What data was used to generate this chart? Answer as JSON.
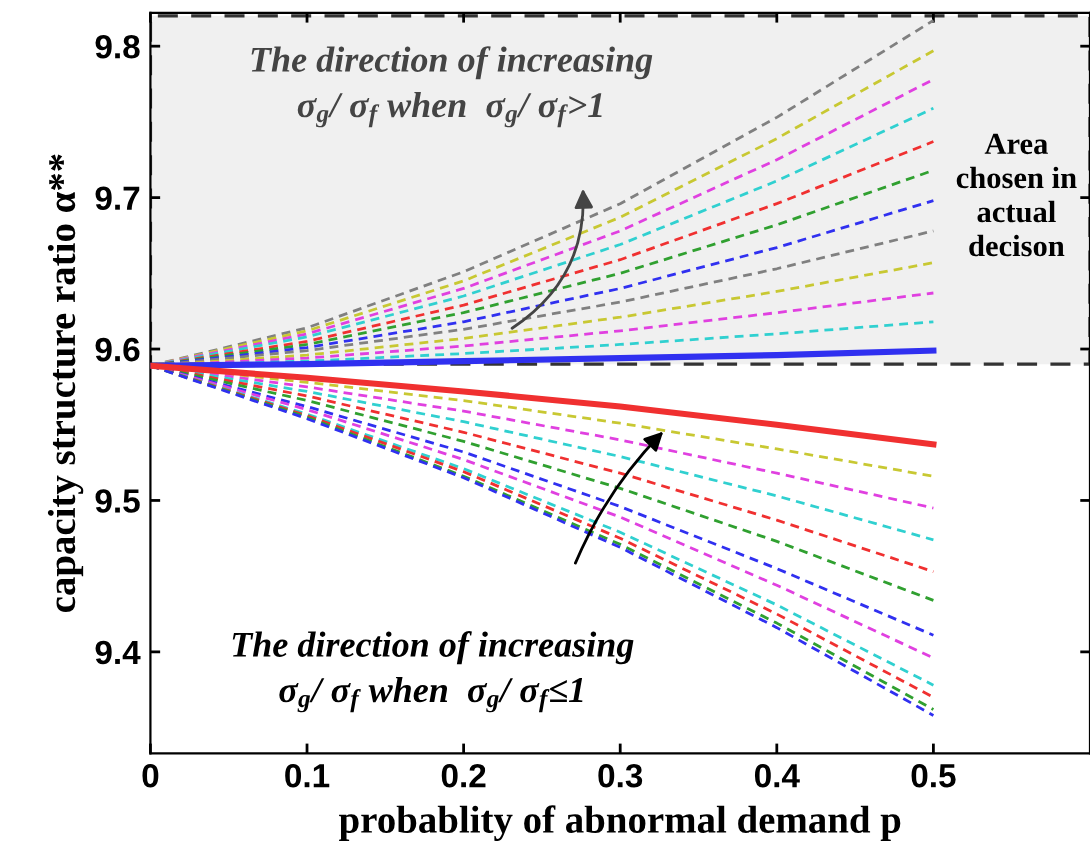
{
  "chart_data": {
    "type": "line",
    "xlabel": "probablity of abnormal demand p",
    "ylabel": "capacity structure ratio α**",
    "x": [
      0,
      0.1,
      0.2,
      0.3,
      0.4,
      0.5
    ],
    "xlim": [
      0,
      0.6
    ],
    "ylim": [
      9.333,
      9.822
    ],
    "xticks": [
      0,
      0.1,
      0.2,
      0.3,
      0.4,
      0.5
    ],
    "yticks": [
      9.4,
      9.5,
      9.6,
      9.7,
      9.8
    ],
    "grid": false,
    "legend": false,
    "marker": "none",
    "series": [
      {
        "color": "#808080",
        "line_style": "dashed",
        "values": [
          9.589,
          9.614,
          9.651,
          9.696,
          9.753,
          9.817
        ]
      },
      {
        "color": "#c8c832",
        "line_style": "dashed",
        "values": [
          9.589,
          9.612,
          9.645,
          9.687,
          9.739,
          9.797
        ]
      },
      {
        "color": "#e040e0",
        "line_style": "dashed",
        "values": [
          9.589,
          9.61,
          9.64,
          9.678,
          9.725,
          9.778
        ]
      },
      {
        "color": "#30d0d0",
        "line_style": "dashed",
        "values": [
          9.589,
          9.608,
          9.635,
          9.669,
          9.711,
          9.759
        ]
      },
      {
        "color": "#f03030",
        "line_style": "dashed",
        "values": [
          9.589,
          9.605,
          9.629,
          9.659,
          9.696,
          9.737
        ]
      },
      {
        "color": "#30a030",
        "line_style": "dashed",
        "values": [
          9.589,
          9.603,
          9.624,
          9.65,
          9.682,
          9.718
        ]
      },
      {
        "color": "#3030f0",
        "line_style": "dashed",
        "values": [
          9.589,
          9.601,
          9.618,
          9.64,
          9.667,
          9.698
        ]
      },
      {
        "color": "#808080",
        "line_style": "dashed",
        "values": [
          9.589,
          9.599,
          9.613,
          9.631,
          9.653,
          9.678
        ]
      },
      {
        "color": "#c8c832",
        "line_style": "dashed",
        "values": [
          9.589,
          9.596,
          9.607,
          9.621,
          9.638,
          9.657
        ]
      },
      {
        "color": "#e040e0",
        "line_style": "dashed",
        "values": [
          9.589,
          9.594,
          9.602,
          9.612,
          9.624,
          9.637
        ]
      },
      {
        "color": "#30d0d0",
        "line_style": "dashed",
        "values": [
          9.589,
          9.592,
          9.597,
          9.603,
          9.61,
          9.618
        ]
      },
      {
        "color": "#3030f0",
        "line_style": "solid",
        "values": [
          9.589,
          9.59,
          9.592,
          9.594,
          9.596,
          9.599
        ]
      },
      {
        "color": "#f03030",
        "line_style": "solid",
        "values": [
          9.589,
          9.581,
          9.572,
          9.562,
          9.55,
          9.537
        ]
      },
      {
        "color": "#c8c832",
        "line_style": "dashed",
        "values": [
          9.589,
          9.578,
          9.566,
          9.551,
          9.534,
          9.516
        ]
      },
      {
        "color": "#e040e0",
        "line_style": "dashed",
        "values": [
          9.589,
          9.575,
          9.559,
          9.54,
          9.518,
          9.495
        ]
      },
      {
        "color": "#30d0d0",
        "line_style": "dashed",
        "values": [
          9.589,
          9.572,
          9.552,
          9.529,
          9.503,
          9.474
        ]
      },
      {
        "color": "#f03030",
        "line_style": "dashed",
        "values": [
          9.589,
          9.569,
          9.545,
          9.518,
          9.487,
          9.453
        ]
      },
      {
        "color": "#30a030",
        "line_style": "dashed",
        "values": [
          9.589,
          9.566,
          9.539,
          9.508,
          9.473,
          9.434
        ]
      },
      {
        "color": "#3030f0",
        "line_style": "dashed",
        "values": [
          9.589,
          9.562,
          9.532,
          9.496,
          9.455,
          9.411
        ]
      },
      {
        "color": "#e040e0",
        "line_style": "dashed",
        "values": [
          9.589,
          9.56,
          9.527,
          9.489,
          9.444,
          9.396
        ]
      },
      {
        "color": "#30d0d0",
        "line_style": "dashed",
        "values": [
          9.589,
          9.557,
          9.521,
          9.479,
          9.431,
          9.378
        ]
      },
      {
        "color": "#f03030",
        "line_style": "dashed",
        "values": [
          9.589,
          9.556,
          9.519,
          9.475,
          9.425,
          9.37
        ]
      },
      {
        "color": "#30a030",
        "line_style": "dashed",
        "values": [
          9.589,
          9.555,
          9.516,
          9.471,
          9.419,
          9.362
        ]
      },
      {
        "color": "#3030f0",
        "line_style": "dashed",
        "values": [
          9.589,
          9.554,
          9.515,
          9.469,
          9.416,
          9.358
        ]
      }
    ],
    "bands": [
      {
        "axis": "y",
        "from": 9.59,
        "to": 9.82,
        "label": "Area\nchosen in\nactual\ndecison",
        "color": "#f0f0f0"
      }
    ],
    "annotations": [
      "The direction of increasing\nσ$_{g}$/ σ$_{f}$ when  σ$_{g}$/ σ$_{f}$>1",
      "The direction of increasing\nσ$_{g}$/ σ$_{f}$ when  σ$_{g}$/ σ$_{f}$≤1"
    ]
  }
}
